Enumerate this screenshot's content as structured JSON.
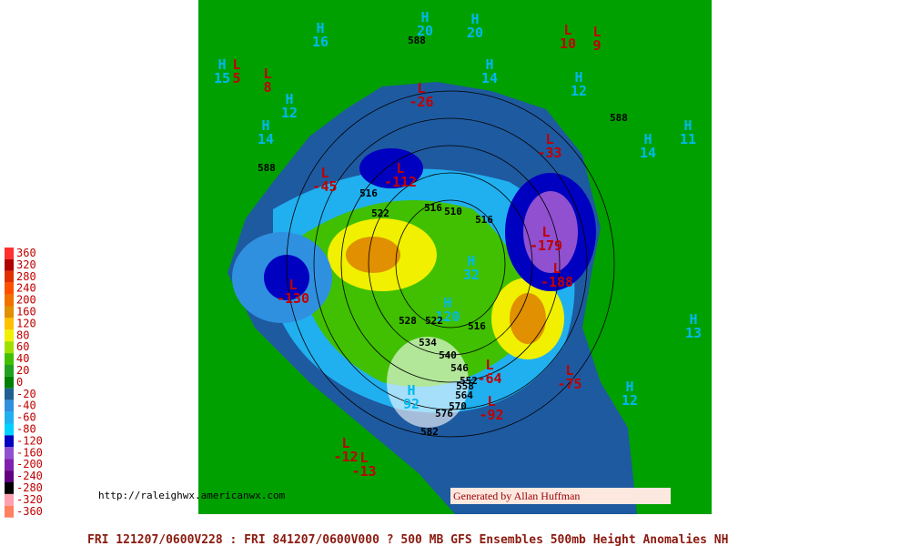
{
  "legend": [
    {
      "label": "360",
      "color": "#ff3030"
    },
    {
      "label": "320",
      "color": "#b00000"
    },
    {
      "label": "280",
      "color": "#e03000"
    },
    {
      "label": "240",
      "color": "#ff5000"
    },
    {
      "label": "200",
      "color": "#f07000"
    },
    {
      "label": "160",
      "color": "#e09000"
    },
    {
      "label": "120",
      "color": "#ffc000"
    },
    {
      "label": "80",
      "color": "#f0f000"
    },
    {
      "label": "60",
      "color": "#a0e000"
    },
    {
      "label": "40",
      "color": "#40c000"
    },
    {
      "label": "20",
      "color": "#20a020"
    },
    {
      "label": "0",
      "color": "#008000"
    },
    {
      "label": "-20",
      "color": "#206090"
    },
    {
      "label": "-40",
      "color": "#3090e0"
    },
    {
      "label": "-60",
      "color": "#20b0f0"
    },
    {
      "label": "-80",
      "color": "#00d0ff"
    },
    {
      "label": "-120",
      "color": "#0000c0"
    },
    {
      "label": "-160",
      "color": "#9050d0"
    },
    {
      "label": "-200",
      "color": "#8020b0"
    },
    {
      "label": "-240",
      "color": "#600080"
    },
    {
      "label": "-280",
      "color": "#000000"
    },
    {
      "label": "-320",
      "color": "#ffa0b0"
    },
    {
      "label": "-360",
      "color": "#ff8060"
    }
  ],
  "centers": [
    {
      "kind": "H",
      "value": "16"
    },
    {
      "kind": "H",
      "value": "20"
    },
    {
      "kind": "H",
      "value": "20"
    },
    {
      "kind": "L",
      "value": "10"
    },
    {
      "kind": "L",
      "value": "9"
    },
    {
      "kind": "H",
      "value": "15"
    },
    {
      "kind": "L",
      "value": "5"
    },
    {
      "kind": "L",
      "value": "8"
    },
    {
      "kind": "H",
      "value": "14"
    },
    {
      "kind": "H",
      "value": "12"
    },
    {
      "kind": "H",
      "value": "12"
    },
    {
      "kind": "L",
      "value": "-26"
    },
    {
      "kind": "H",
      "value": "14"
    },
    {
      "kind": "H",
      "value": "14"
    },
    {
      "kind": "H",
      "value": "11"
    },
    {
      "kind": "L",
      "value": "-33"
    },
    {
      "kind": "L",
      "value": "-45"
    },
    {
      "kind": "L",
      "value": "-112"
    },
    {
      "kind": "L",
      "value": "-179"
    },
    {
      "kind": "L",
      "value": "-188"
    },
    {
      "kind": "H",
      "value": "32"
    },
    {
      "kind": "L",
      "value": "-130"
    },
    {
      "kind": "H",
      "value": "120"
    },
    {
      "kind": "L",
      "value": "-64"
    },
    {
      "kind": "L",
      "value": "-75"
    },
    {
      "kind": "H",
      "value": "92"
    },
    {
      "kind": "L",
      "value": "-92"
    },
    {
      "kind": "H",
      "value": "12"
    },
    {
      "kind": "H",
      "value": "13"
    },
    {
      "kind": "L",
      "value": "-12"
    },
    {
      "kind": "L",
      "value": "-13"
    }
  ],
  "contour_labels": [
    "588",
    "588",
    "588",
    "516",
    "522",
    "516",
    "510",
    "516",
    "528",
    "522",
    "516",
    "534",
    "540",
    "546",
    "552",
    "558",
    "564",
    "570",
    "576",
    "582"
  ],
  "url": "http://raleighwx.americanwx.com",
  "credit": "Generated by Allan Huffman",
  "footer": "FRI 121207/0600V228 : FRI 841207/0600V000  ? 500 MB GFS Ensembles 500mb Height Anomalies NH"
}
